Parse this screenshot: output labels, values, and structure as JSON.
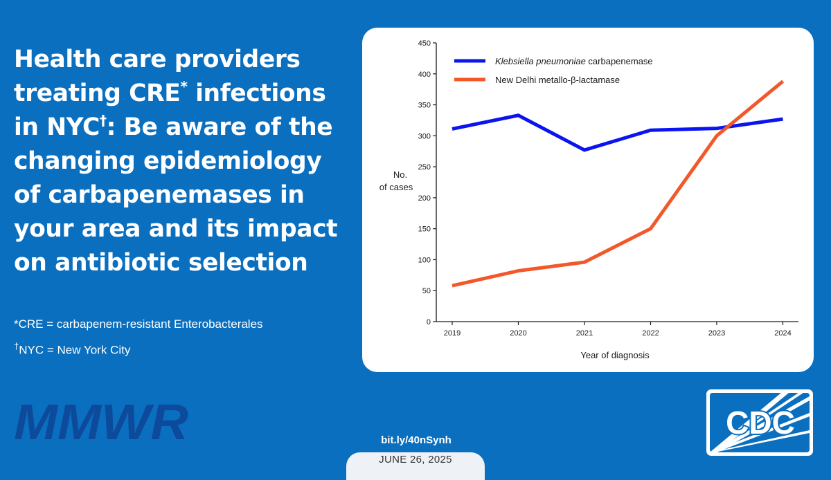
{
  "headline": {
    "part1": "Health care providers treating CRE",
    "mark1": "*",
    "part2": " infections in NYC",
    "mark2": "†",
    "part3": ": Be aware of the changing epidemiology of carbapenemases in your area and its impact on antibiotic selection"
  },
  "footnotes": {
    "cre": "*CRE = carbapenem-resistant Enterobacterales",
    "nyc_mark": "†",
    "nyc": "NYC = New York City"
  },
  "branding": {
    "mmwr_logo": "MMWR",
    "cdc_logo": "CDC",
    "url": "bit.ly/40nSynh",
    "date": "JUNE 26, 2025"
  },
  "colors": {
    "background": "#0a6fbf",
    "mmwr": "#0d4a9c",
    "kpc": "#0a14f0",
    "ndm": "#f2582a"
  },
  "chart_data": {
    "type": "line",
    "title": "",
    "xlabel": "Year of diagnosis",
    "ylabel_line1": "No.",
    "ylabel_line2": "of cases",
    "x": [
      "2019",
      "2020",
      "2021",
      "2022",
      "2023",
      "2024"
    ],
    "ylim": [
      0,
      450
    ],
    "yticks": [
      0,
      50,
      100,
      150,
      200,
      250,
      300,
      350,
      400,
      450
    ],
    "grid": false,
    "legend_position": "top-left",
    "series": [
      {
        "name_italic": "Klebsiella pneumoniae",
        "name_rest": " carbapenemase",
        "color": "#0a14f0",
        "values": [
          311,
          333,
          277,
          309,
          312,
          327
        ]
      },
      {
        "name": "New Delhi metallo-β-lactamase",
        "color": "#f2582a",
        "values": [
          58,
          82,
          96,
          150,
          300,
          388
        ]
      }
    ]
  }
}
